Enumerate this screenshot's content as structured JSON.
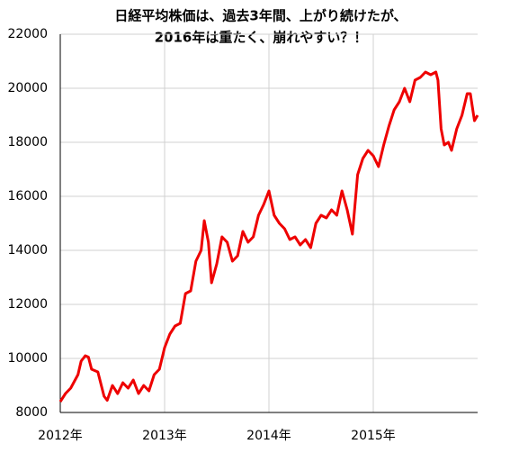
{
  "chart_data": {
    "type": "line",
    "title": [
      "日経平均株価は、過去3年間、上がり続けたが、",
      "2016年は重たく、崩れやすい？！"
    ],
    "x": [
      2012.0,
      2012.05,
      2012.1,
      2012.17,
      2012.2,
      2012.24,
      2012.27,
      2012.3,
      2012.36,
      2012.42,
      2012.45,
      2012.5,
      2012.55,
      2012.6,
      2012.65,
      2012.7,
      2012.75,
      2012.8,
      2012.85,
      2012.9,
      2012.95,
      2013.0,
      2013.05,
      2013.1,
      2013.15,
      2013.2,
      2013.25,
      2013.3,
      2013.35,
      2013.38,
      2013.42,
      2013.45,
      2013.5,
      2013.55,
      2013.6,
      2013.65,
      2013.7,
      2013.75,
      2013.8,
      2013.85,
      2013.9,
      2013.95,
      2014.0,
      2014.05,
      2014.1,
      2014.15,
      2014.2,
      2014.25,
      2014.3,
      2014.35,
      2014.4,
      2014.45,
      2014.5,
      2014.55,
      2014.6,
      2014.65,
      2014.7,
      2014.75,
      2014.8,
      2014.85,
      2014.9,
      2014.95,
      2015.0,
      2015.05,
      2015.1,
      2015.15,
      2015.2,
      2015.25,
      2015.3,
      2015.35,
      2015.4,
      2015.45,
      2015.5,
      2015.55,
      2015.6,
      2015.62,
      2015.65,
      2015.68,
      2015.72,
      2015.75,
      2015.8,
      2015.85,
      2015.9,
      2015.93,
      2015.97,
      2016.0
    ],
    "series": [
      {
        "color": "#ee0000",
        "values": [
          8400,
          8700,
          8900,
          9400,
          9900,
          10100,
          10050,
          9600,
          9500,
          8600,
          8450,
          9000,
          8700,
          9100,
          8900,
          9200,
          8700,
          9000,
          8800,
          9400,
          9600,
          10400,
          10900,
          11200,
          11300,
          12400,
          12500,
          13600,
          14000,
          15100,
          14300,
          12800,
          13500,
          14500,
          14300,
          13600,
          13800,
          14700,
          14300,
          14500,
          15300,
          15700,
          16200,
          15300,
          15000,
          14800,
          14400,
          14500,
          14200,
          14400,
          14100,
          15000,
          15300,
          15200,
          15500,
          15300,
          16200,
          15500,
          14600,
          16800,
          17400,
          17700,
          17500,
          17100,
          17900,
          18600,
          19200,
          19500,
          20000,
          19500,
          20300,
          20400,
          20600,
          20500,
          20600,
          20300,
          18500,
          17900,
          18000,
          17700,
          18500,
          19000,
          19800,
          19800,
          18800,
          19000
        ]
      }
    ],
    "xlim": [
      2012,
      2016
    ],
    "xticks": [
      {
        "value": 2012,
        "label": "2012年"
      },
      {
        "value": 2013,
        "label": "2013年"
      },
      {
        "value": 2014,
        "label": "2014年"
      },
      {
        "value": 2015,
        "label": "2015年"
      }
    ],
    "ylim": [
      8000,
      22000
    ],
    "yticks": [
      8000,
      10000,
      12000,
      14000,
      16000,
      18000,
      20000,
      22000
    ],
    "grid": true
  }
}
